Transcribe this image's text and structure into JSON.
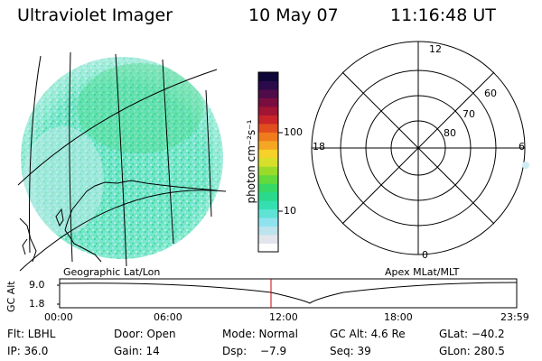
{
  "header": {
    "instrument": "Ultraviolet Imager",
    "date": "10 May 07",
    "time": "11:16:48 UT"
  },
  "colorbar": {
    "unit_label": "photon cm⁻²s⁻¹",
    "ticks": [
      "100",
      "10"
    ],
    "colors": [
      "#ffffff",
      "#e2e6ec",
      "#bde3ec",
      "#8fe3ee",
      "#5fe3d5",
      "#35e0b0",
      "#2ad98b",
      "#36d866",
      "#62d93c",
      "#9adb2a",
      "#d6e02a",
      "#f5d22a",
      "#f5a623",
      "#ef7b1c",
      "#e14d1e",
      "#c8242a",
      "#a11434",
      "#7a0d3f",
      "#4f0c4a",
      "#2a0a4a",
      "#0d0636"
    ]
  },
  "map": {
    "caption": "Geographic Lat/Lon"
  },
  "polar": {
    "caption": "Apex MLat/MLT",
    "hours": {
      "top": "12",
      "left": "18",
      "right": "6",
      "bottom": "0"
    },
    "latitudes": [
      "60",
      "70",
      "80"
    ]
  },
  "altitude_plot": {
    "ylabel": "GC Alt",
    "yticks": [
      "9.0",
      "1.8"
    ],
    "xticks": [
      "00:00",
      "06:00",
      "12:00",
      "18:00",
      "23:59"
    ],
    "marker_color": "#cc0000"
  },
  "info": {
    "flt": "Flt: LBHL",
    "door": "Door: Open",
    "mode": "Mode: Normal",
    "gc_alt": "GC Alt: 4.6 Re",
    "glat": "GLat: −40.2",
    "ip": "IP: 36.0",
    "gain": "Gain: 14",
    "dsp_label": "Dsp:",
    "dsp_value": "−7.9",
    "seq": "Seq: 39",
    "glon": "GLon: 280.5"
  }
}
